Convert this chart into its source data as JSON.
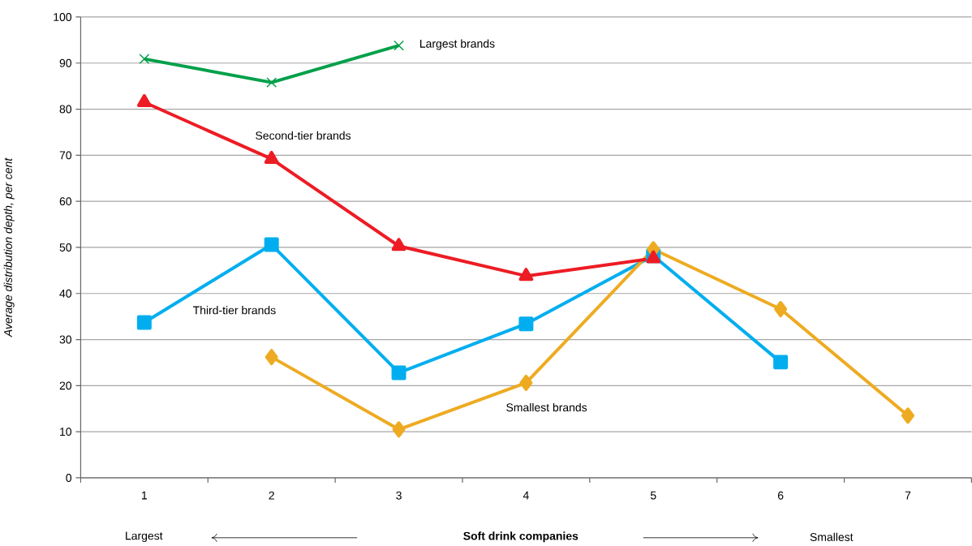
{
  "chart_data": {
    "type": "line",
    "xlabel": "Soft drink companies",
    "ylabel": "Average distribution depth, per cent",
    "categories": [
      "1",
      "2",
      "3",
      "4",
      "5",
      "6",
      "7"
    ],
    "series": [
      {
        "name": "Largest brands",
        "color": "#00a04a",
        "marker": "cross",
        "values": [
          90.9,
          85.8,
          93.8,
          null,
          null,
          null,
          null
        ]
      },
      {
        "name": "Second-tier brands",
        "color": "#ed1c24",
        "marker": "triangle",
        "values": [
          81.5,
          69.2,
          50.3,
          43.8,
          47.6,
          null,
          null
        ]
      },
      {
        "name": "Third-tier brands",
        "color": "#00aeef",
        "marker": "square",
        "values": [
          33.7,
          50.6,
          22.8,
          33.4,
          48.2,
          25.1,
          null
        ]
      },
      {
        "name": "Smallest brands",
        "color": "#eeab22",
        "marker": "diamond",
        "values": [
          null,
          26.2,
          10.5,
          20.6,
          49.6,
          36.6,
          13.5
        ]
      }
    ],
    "ylim": [
      0,
      100
    ],
    "yticks": [
      0,
      10,
      20,
      30,
      40,
      50,
      60,
      70,
      80,
      90,
      100
    ],
    "grid": "y",
    "line_style": "solid",
    "annotations": [
      "Largest",
      "Smallest"
    ]
  }
}
